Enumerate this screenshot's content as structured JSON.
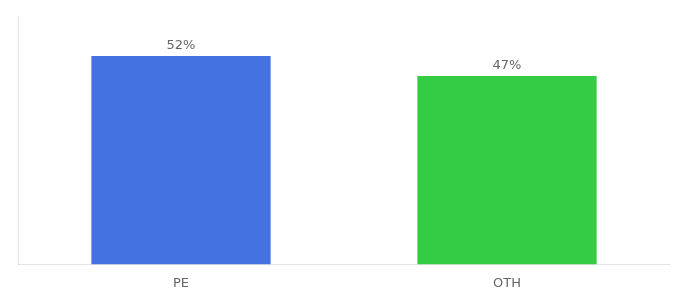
{
  "chart_data": {
    "type": "bar",
    "categories": [
      "PE",
      "OTH"
    ],
    "values": [
      52,
      47
    ],
    "value_labels": [
      "52%",
      "47%"
    ],
    "colors": [
      "#4472e0",
      "#33cc44"
    ],
    "ylim": [
      0,
      62
    ],
    "grid": false,
    "data_labels": true,
    "tick_labels": "x"
  }
}
